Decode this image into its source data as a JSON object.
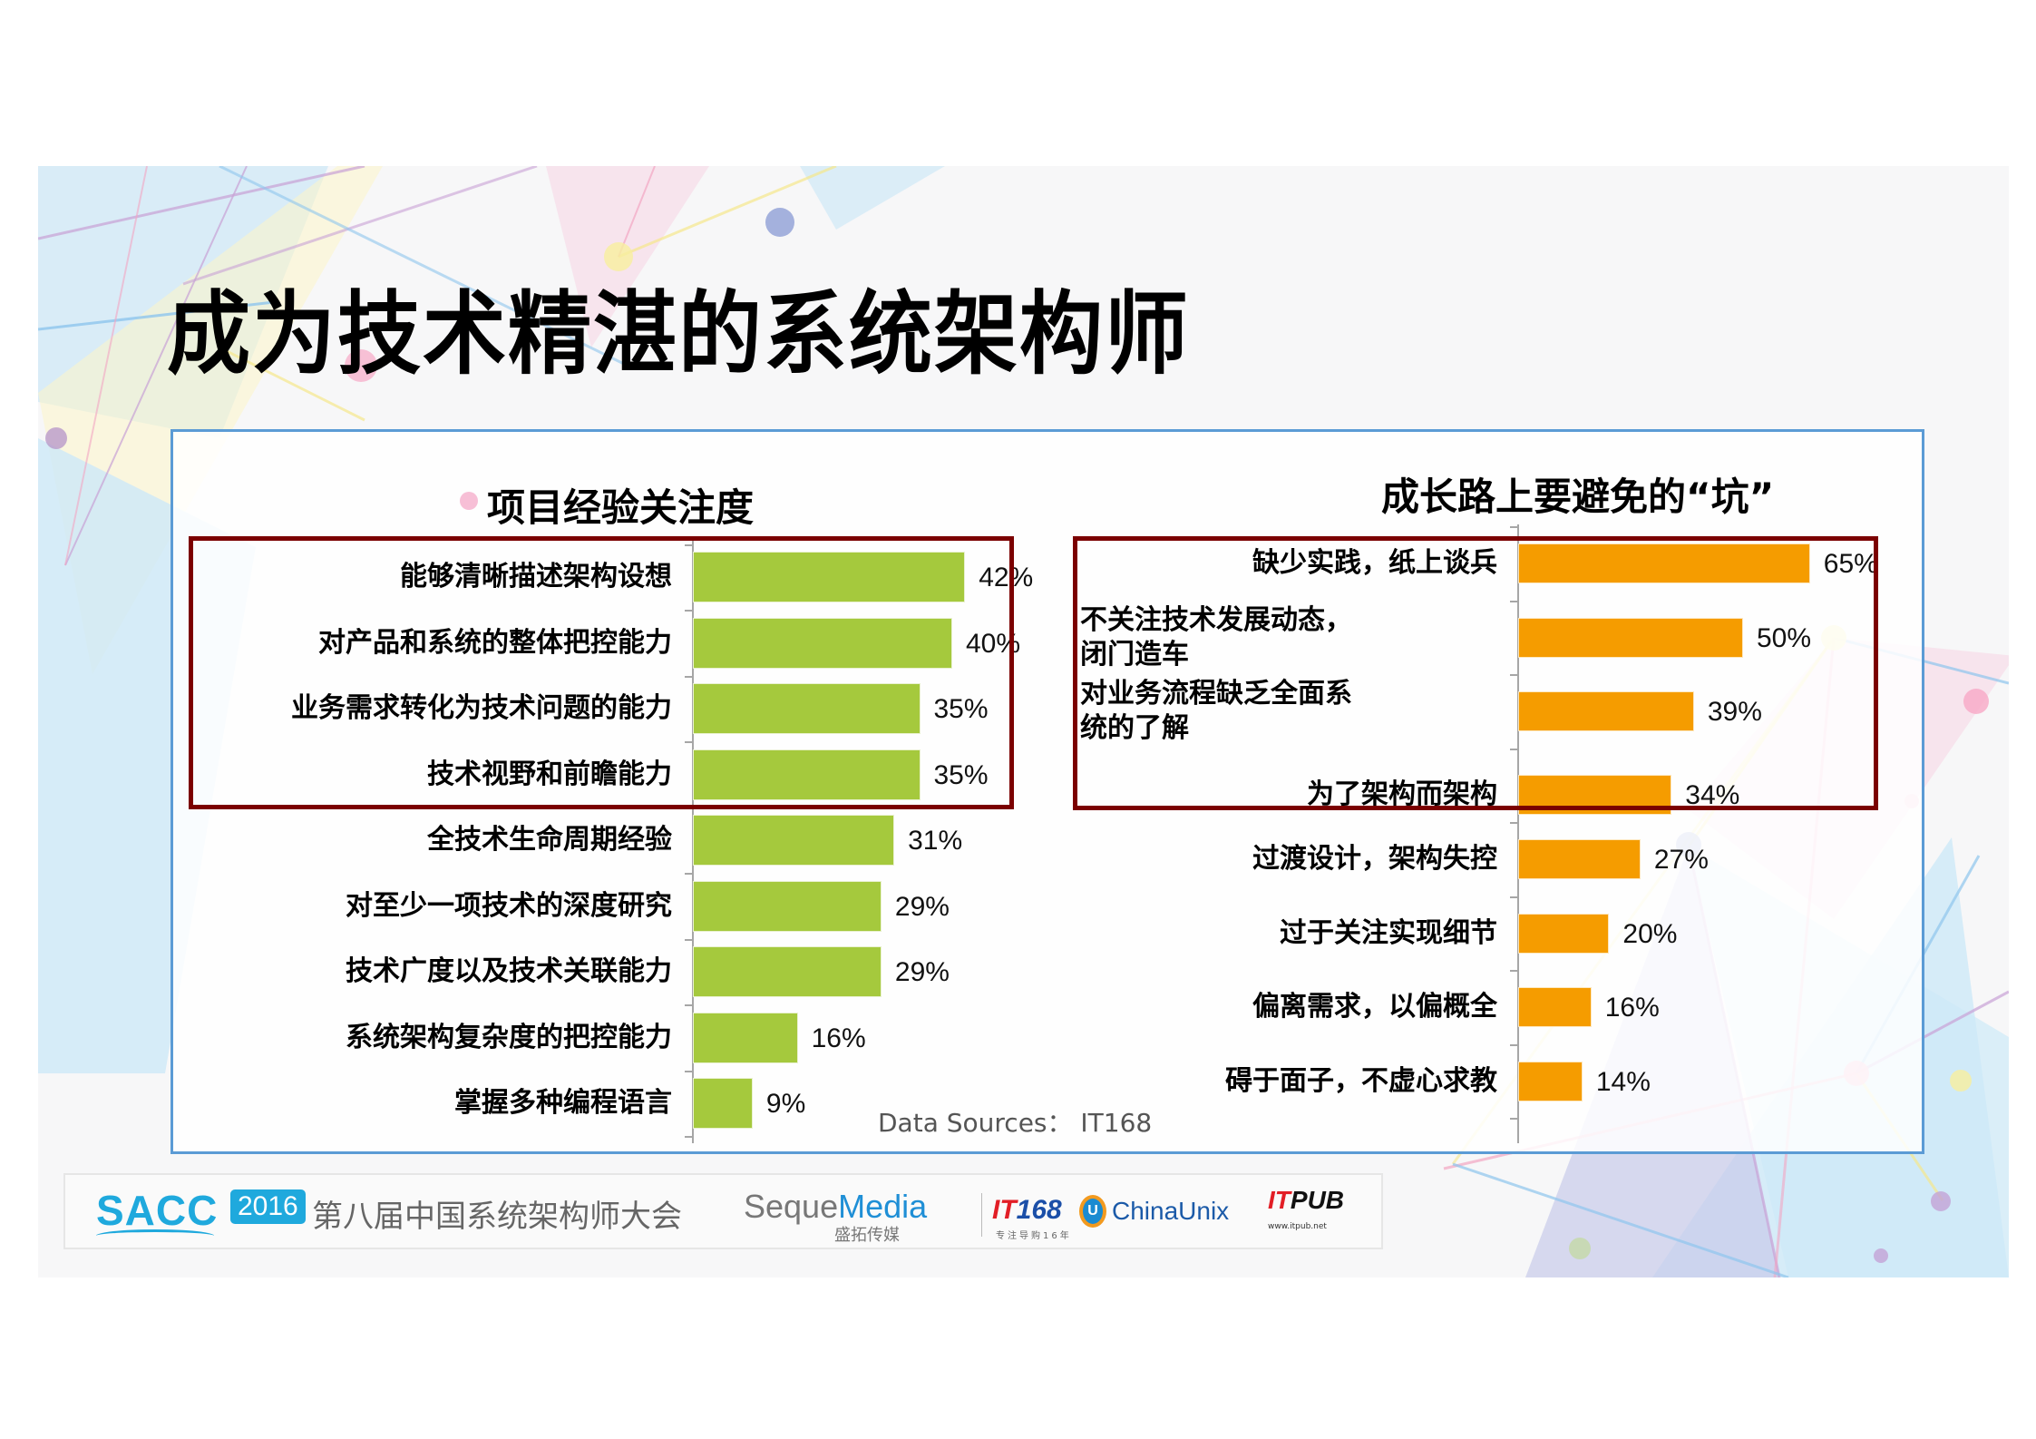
{
  "slide": {
    "title": "成为技术精湛的系统架构师"
  },
  "left_chart": {
    "title": "项目经验关注度",
    "bar_color": "#a5c93d",
    "highlight_color": "#7b0000",
    "rows": [
      {
        "label": "能够清晰描述架构设想",
        "value": 42,
        "display": "42%"
      },
      {
        "label": "对产品和系统的整体把控能力",
        "value": 40,
        "display": "40%"
      },
      {
        "label": "业务需求转化为技术问题的能力",
        "value": 35,
        "display": "35%"
      },
      {
        "label": "技术视野和前瞻能力",
        "value": 35,
        "display": "35%"
      },
      {
        "label": "全技术生命周期经验",
        "value": 31,
        "display": "31%"
      },
      {
        "label": "对至少一项技术的深度研究",
        "value": 29,
        "display": "29%"
      },
      {
        "label": "技术广度以及技术关联能力",
        "value": 29,
        "display": "29%"
      },
      {
        "label": "系统架构复杂度的把控能力",
        "value": 16,
        "display": "16%"
      },
      {
        "label": "掌握多种编程语言",
        "value": 9,
        "display": "9%"
      }
    ]
  },
  "right_chart": {
    "title": "成长路上要避免的“坑”",
    "bar_color": "#f59c00",
    "highlight_color": "#7b0000",
    "rows": [
      {
        "label_line1": "缺少实践，纸上谈兵",
        "label_line2": "",
        "value": 65,
        "display": "65%"
      },
      {
        "label_line1": "不关注技术发展动态，",
        "label_line2": "闭门造车",
        "value": 50,
        "display": "50%"
      },
      {
        "label_line1": "对业务流程缺乏全面系",
        "label_line2": "统的了解",
        "value": 39,
        "display": "39%"
      },
      {
        "label_line1": "为了架构而架构",
        "label_line2": "",
        "value": 34,
        "display": "34%"
      },
      {
        "label_line1": "过渡设计，架构失控",
        "label_line2": "",
        "value": 27,
        "display": "27%"
      },
      {
        "label_line1": "过于关注实现细节",
        "label_line2": "",
        "value": 20,
        "display": "20%"
      },
      {
        "label_line1": "偏离需求，以偏概全",
        "label_line2": "",
        "value": 16,
        "display": "16%"
      },
      {
        "label_line1": "碍于面子，不虚心求教",
        "label_line2": "",
        "value": 14,
        "display": "14%"
      }
    ]
  },
  "source": "Data Sources：  IT168",
  "footer": {
    "sacc": "SACC",
    "year": "2016",
    "conference": "第八届中国系统架构师大会",
    "seque_a": "Seque",
    "seque_b": "Media",
    "seque_cn": "盛拓传媒",
    "it168_a": "IT",
    "it168_b": "168",
    "it168_sub": "专注导购16年",
    "chinaunix": "ChinaUnix",
    "chinaunix_icon": "U",
    "itpub_a": "IT",
    "itpub_b": "PUB",
    "itpub_sub": "www.itpub.net"
  },
  "chart_data": [
    {
      "type": "bar",
      "orientation": "horizontal",
      "title": "项目经验关注度",
      "categories": [
        "能够清晰描述架构设想",
        "对产品和系统的整体把控能力",
        "业务需求转化为技术问题的能力",
        "技术视野和前瞻能力",
        "全技术生命周期经验",
        "对至少一项技术的深度研究",
        "技术广度以及技术关联能力",
        "系统架构复杂度的把控能力",
        "掌握多种编程语言"
      ],
      "values": [
        42,
        40,
        35,
        35,
        31,
        29,
        29,
        16,
        9
      ],
      "unit": "%",
      "color": "#a5c93d",
      "highlighted_categories": [
        "能够清晰描述架构设想",
        "对产品和系统的整体把控能力",
        "业务需求转化为技术问题的能力",
        "技术视野和前瞻能力"
      ],
      "xlabel": "",
      "ylabel": "",
      "grid": false
    },
    {
      "type": "bar",
      "orientation": "horizontal",
      "title": "成长路上要避免的“坑”",
      "categories": [
        "缺少实践，纸上谈兵",
        "不关注技术发展动态，闭门造车",
        "对业务流程缺乏全面系统的了解",
        "为了架构而架构",
        "过渡设计，架构失控",
        "过于关注实现细节",
        "偏离需求，以偏概全",
        "碍于面子，不虚心求教"
      ],
      "values": [
        65,
        50,
        39,
        34,
        27,
        20,
        16,
        14
      ],
      "unit": "%",
      "color": "#f59c00",
      "highlighted_categories": [
        "缺少实践，纸上谈兵",
        "不关注技术发展动态，闭门造车",
        "对业务流程缺乏全面系统的了解",
        "为了架构而架构"
      ],
      "xlabel": "",
      "ylabel": "",
      "grid": false,
      "source": "Data Sources： IT168"
    }
  ]
}
